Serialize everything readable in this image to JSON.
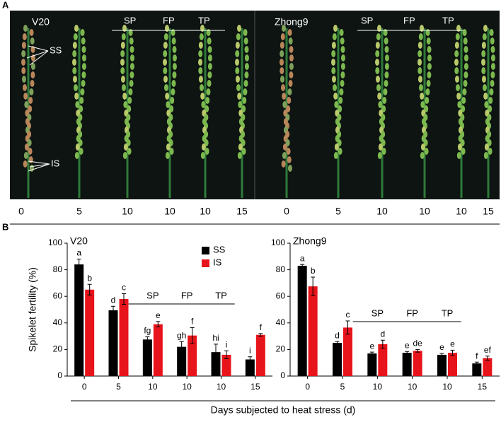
{
  "panel_a": {
    "label": "A",
    "cultivars": [
      "V20",
      "Zhong9"
    ],
    "annotations": [
      "SP",
      "FP",
      "TP"
    ],
    "spikelets": [
      "SS",
      "IS"
    ],
    "days": [
      "0",
      "5",
      "10",
      "10",
      "10",
      "15",
      "0",
      "5",
      "10",
      "10",
      "10",
      "15"
    ]
  },
  "panel_b": {
    "label": "B"
  },
  "x_label": "Days subjected to heat stress (d)",
  "chart_data": [
    {
      "type": "bar",
      "title": "V20",
      "y_label": "Spikelet fertility (%)",
      "categories": [
        "0",
        "5",
        "10",
        "10",
        "10",
        "15"
      ],
      "ylim": [
        0,
        100
      ],
      "yticks": [
        0,
        20,
        40,
        60,
        80,
        100
      ],
      "legend": "top-right",
      "annotations": [
        "SP",
        "FP",
        "TP"
      ],
      "series": [
        {
          "name": "SS",
          "color": "#000000",
          "values": [
            84,
            49.5,
            27.5,
            22,
            18,
            12.5
          ],
          "errors": [
            4,
            3,
            2,
            4,
            6,
            2
          ],
          "letters": [
            "a",
            "d",
            "fg",
            "gh",
            "hi",
            "i"
          ]
        },
        {
          "name": "IS",
          "color": "#e8141b",
          "values": [
            65,
            58,
            39,
            30.5,
            16,
            31
          ],
          "errors": [
            4,
            4,
            2,
            6,
            3,
            1
          ],
          "letters": [
            "b",
            "c",
            "e",
            "f",
            "i",
            "f"
          ]
        }
      ]
    },
    {
      "type": "bar",
      "title": "Zhong9",
      "categories": [
        "0",
        "5",
        "10",
        "10",
        "10",
        "15"
      ],
      "ylim": [
        0,
        100
      ],
      "yticks": [
        0,
        20,
        40,
        60,
        80,
        100
      ],
      "annotations": [
        "SP",
        "FP",
        "TP"
      ],
      "series": [
        {
          "color": "#000000",
          "values": [
            83,
            25,
            17,
            17.5,
            16,
            9.5
          ],
          "errors": [
            1,
            1,
            1,
            1,
            1,
            1
          ],
          "letters": [
            "a",
            "d",
            "e",
            "e",
            "e",
            "f"
          ]
        },
        {
          "color": "#e8141b",
          "values": [
            67.5,
            36.5,
            24,
            19,
            17.5,
            13.5
          ],
          "errors": [
            7,
            5,
            3,
            1,
            2,
            1.5
          ],
          "letters": [
            "b",
            "c",
            "d",
            "de",
            "e",
            "ef"
          ]
        }
      ]
    }
  ]
}
